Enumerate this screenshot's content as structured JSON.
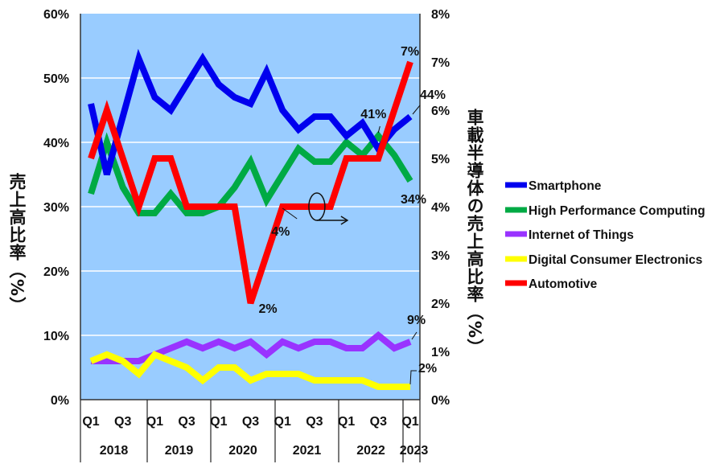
{
  "chart_data": {
    "type": "line",
    "x": [
      "2018Q1",
      "2018Q2",
      "2018Q3",
      "2018Q4",
      "2019Q1",
      "2019Q2",
      "2019Q3",
      "2019Q4",
      "2020Q1",
      "2020Q2",
      "2020Q3",
      "2020Q4",
      "2021Q1",
      "2021Q2",
      "2021Q3",
      "2021Q4",
      "2022Q1",
      "2022Q2",
      "2022Q3",
      "2022Q4",
      "2023Q1"
    ],
    "quarter_tick_labels": [
      "Q1",
      "",
      "Q3",
      "",
      "Q1",
      "",
      "Q3",
      "",
      "Q1",
      "",
      "Q3",
      "",
      "Q1",
      "",
      "Q3",
      "",
      "Q1",
      "",
      "Q3",
      "",
      "Q1"
    ],
    "year_labels": [
      "2018",
      "2019",
      "2020",
      "2021",
      "2022",
      "2023"
    ],
    "ylabel": "売上高比率（%）",
    "y2label": "車載半導体の売上高比率（%）",
    "ylim": [
      0,
      60
    ],
    "y2lim": [
      0,
      8
    ],
    "yticks": [
      "0%",
      "10%",
      "20%",
      "30%",
      "40%",
      "50%",
      "60%"
    ],
    "y2ticks": [
      "0%",
      "1%",
      "2%",
      "3%",
      "4%",
      "5%",
      "6%",
      "7%",
      "8%"
    ],
    "grid": true,
    "legend_position": "right",
    "series": [
      {
        "name": "Smartphone",
        "axis": "left",
        "color": "#0000ee",
        "values": [
          46,
          35,
          44,
          53,
          47,
          45,
          49,
          53,
          49,
          47,
          46,
          51,
          45,
          42,
          44,
          44,
          41,
          43,
          39,
          42,
          44
        ]
      },
      {
        "name": "High Performance Computing",
        "axis": "left",
        "color": "#00aa44",
        "values": [
          32,
          40,
          33,
          29,
          29,
          32,
          29,
          29,
          30,
          33,
          37,
          31,
          35,
          39,
          37,
          37,
          40,
          38,
          41,
          38,
          34
        ]
      },
      {
        "name": "Internet of Things",
        "axis": "left",
        "color": "#9933ff",
        "values": [
          6,
          6,
          6,
          6,
          7,
          8,
          9,
          8,
          9,
          8,
          9,
          7,
          9,
          8,
          9,
          9,
          8,
          8,
          10,
          8,
          9
        ]
      },
      {
        "name": "Digital Consumer Electronics",
        "axis": "left",
        "color": "#ffff00",
        "values": [
          6,
          7,
          6,
          4,
          7,
          6,
          5,
          3,
          5,
          5,
          3,
          4,
          4,
          4,
          3,
          3,
          3,
          3,
          2,
          2,
          2
        ]
      },
      {
        "name": "Automotive",
        "axis": "right",
        "color": "#ff0000",
        "values": [
          5,
          6,
          5,
          4,
          5,
          5,
          4,
          4,
          4,
          4,
          2,
          3,
          4,
          4,
          4,
          4,
          5,
          5,
          5,
          6,
          7
        ]
      }
    ],
    "annotations": [
      {
        "text": "44%",
        "series": "Smartphone",
        "index": 20
      },
      {
        "text": "41%",
        "series": "High Performance Computing",
        "index": 18
      },
      {
        "text": "34%",
        "series": "High Performance Computing",
        "index": 20
      },
      {
        "text": "7%",
        "series": "Automotive",
        "index": 20
      },
      {
        "text": "4%",
        "series": "Automotive",
        "index": 12
      },
      {
        "text": "2%",
        "series": "Automotive",
        "index": 10
      },
      {
        "text": "9%",
        "series": "Internet of Things",
        "index": 20
      },
      {
        "text": "2%",
        "series": "Digital Consumer Electronics",
        "index": 20
      }
    ],
    "plot_bg": "#99ccff"
  }
}
